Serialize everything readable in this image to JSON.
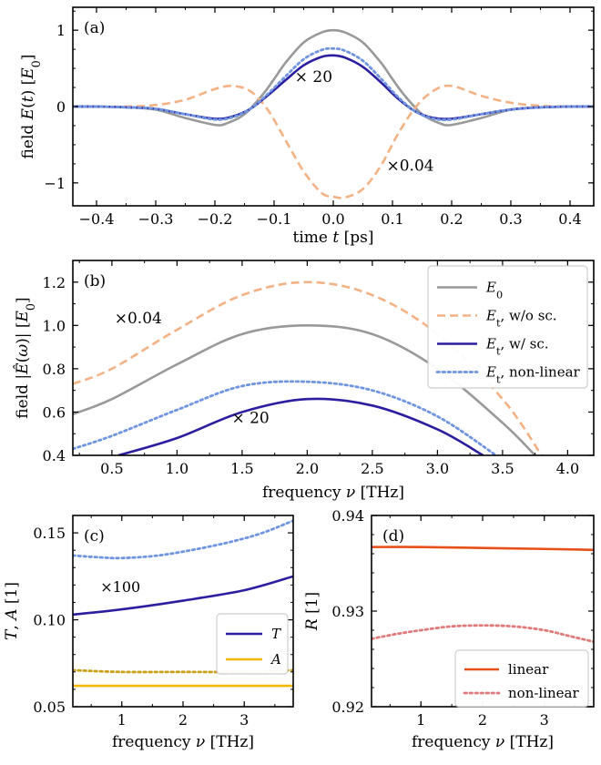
{
  "colors": {
    "E0": "#999999",
    "wo_sc": "#f4b183",
    "w_sc": "#2b1fa0",
    "nonlinear": "#6f95e0",
    "A": "#f5b800",
    "A_dotted": "#c9a01a",
    "R_linear": "#e8501a",
    "R_nonlinear": "#e07a7a",
    "annot_orange": "#f4b183",
    "annot_blue": "#3340b0"
  },
  "chart_data": [
    {
      "panel": "(a)",
      "type": "line",
      "xlabel": "time t [ps]",
      "ylabel": "field E(t) [E0]",
      "xlim": [
        -0.44,
        0.44
      ],
      "ylim": [
        -1.3,
        1.3
      ],
      "xticks": [
        "−0.4",
        "−0.3",
        "−0.2",
        "−0.1",
        "0.0",
        "0.1",
        "0.2",
        "0.3",
        "0.4"
      ],
      "yticks": [
        "−1",
        "0",
        "1"
      ],
      "annotations": [
        "× 20",
        "×0.04"
      ],
      "series": [
        {
          "key": "E0",
          "style": "solid",
          "x": [
            -0.44,
            -0.4,
            -0.35,
            -0.3,
            -0.25,
            -0.2,
            -0.18,
            -0.15,
            -0.12,
            -0.1,
            -0.08,
            -0.05,
            -0.02,
            0,
            0.02,
            0.05,
            0.08,
            0.1,
            0.12,
            0.15,
            0.18,
            0.2,
            0.25,
            0.3,
            0.35,
            0.4,
            0.44
          ],
          "y": [
            0,
            0,
            -0.01,
            -0.04,
            -0.15,
            -0.24,
            -0.22,
            -0.1,
            0.15,
            0.36,
            0.58,
            0.84,
            0.97,
            1.0,
            0.97,
            0.84,
            0.58,
            0.36,
            0.15,
            -0.1,
            -0.22,
            -0.24,
            -0.15,
            -0.04,
            -0.01,
            0,
            0
          ]
        },
        {
          "key": "wo_sc",
          "style": "dashed",
          "x": [
            -0.44,
            -0.4,
            -0.35,
            -0.3,
            -0.25,
            -0.2,
            -0.17,
            -0.14,
            -0.11,
            -0.08,
            -0.05,
            -0.02,
            0.0,
            0.02,
            0.05,
            0.08,
            0.11,
            0.14,
            0.17,
            0.2,
            0.25,
            0.3,
            0.35,
            0.4,
            0.44
          ],
          "y": [
            0,
            0,
            0,
            0.02,
            0.09,
            0.23,
            0.27,
            0.2,
            -0.05,
            -0.45,
            -0.85,
            -1.13,
            -1.18,
            -1.19,
            -1.08,
            -0.78,
            -0.35,
            0.0,
            0.21,
            0.27,
            0.14,
            0.05,
            0.01,
            0,
            0
          ]
        },
        {
          "key": "w_sc",
          "style": "solid",
          "x": [
            -0.44,
            -0.4,
            -0.35,
            -0.3,
            -0.25,
            -0.2,
            -0.17,
            -0.14,
            -0.11,
            -0.08,
            -0.05,
            -0.02,
            0,
            0.02,
            0.05,
            0.08,
            0.11,
            0.14,
            0.17,
            0.2,
            0.25,
            0.3,
            0.35,
            0.4,
            0.44
          ],
          "y": [
            0,
            0,
            -0.01,
            -0.03,
            -0.1,
            -0.16,
            -0.13,
            -0.03,
            0.15,
            0.35,
            0.54,
            0.65,
            0.67,
            0.64,
            0.52,
            0.32,
            0.1,
            -0.07,
            -0.15,
            -0.16,
            -0.1,
            -0.04,
            -0.01,
            0,
            0
          ]
        },
        {
          "key": "nonlinear",
          "style": "dotted",
          "x": [
            -0.44,
            -0.4,
            -0.35,
            -0.3,
            -0.25,
            -0.2,
            -0.17,
            -0.14,
            -0.11,
            -0.08,
            -0.05,
            -0.02,
            0,
            0.02,
            0.05,
            0.08,
            0.11,
            0.14,
            0.17,
            0.2,
            0.25,
            0.3,
            0.35,
            0.4,
            0.44
          ],
          "y": [
            0,
            0,
            -0.01,
            -0.03,
            -0.1,
            -0.17,
            -0.14,
            -0.03,
            0.17,
            0.4,
            0.62,
            0.74,
            0.76,
            0.73,
            0.6,
            0.37,
            0.12,
            -0.07,
            -0.16,
            -0.17,
            -0.1,
            -0.04,
            -0.01,
            0,
            0
          ]
        }
      ]
    },
    {
      "panel": "(b)",
      "type": "line",
      "xlabel": "frequency ν [THz]",
      "ylabel": "field |Ê(ω)| [E0]",
      "xlim": [
        0.2,
        4.2
      ],
      "ylim": [
        0.4,
        1.3
      ],
      "xticks": [
        "0.5",
        "1.0",
        "1.5",
        "2.0",
        "2.5",
        "3.0",
        "3.5",
        "4.0"
      ],
      "yticks": [
        "0.4",
        "0.6",
        "0.8",
        "1.0",
        "1.2"
      ],
      "annotations": [
        "×0.04",
        "× 20"
      ],
      "legend": {
        "position": "top-right",
        "entries": [
          {
            "key": "E0",
            "label": "E0"
          },
          {
            "key": "wo_sc",
            "label": "Et, w/o sc."
          },
          {
            "key": "w_sc",
            "label": "Et, w/ sc."
          },
          {
            "key": "nonlinear",
            "label": "Et, non-linear"
          }
        ]
      },
      "series": [
        {
          "key": "E0",
          "style": "solid",
          "x": [
            0.2,
            0.5,
            1.0,
            1.5,
            2.0,
            2.5,
            3.0,
            3.5,
            3.75
          ],
          "y": [
            0.59,
            0.66,
            0.82,
            0.96,
            1.0,
            0.96,
            0.8,
            0.55,
            0.4
          ]
        },
        {
          "key": "wo_sc",
          "style": "dashed",
          "x": [
            0.2,
            0.5,
            1.0,
            1.5,
            2.0,
            2.5,
            3.0,
            3.5,
            3.8
          ],
          "y": [
            0.73,
            0.8,
            0.98,
            1.14,
            1.2,
            1.14,
            0.96,
            0.66,
            0.4
          ]
        },
        {
          "key": "w_sc",
          "style": "solid",
          "x": [
            0.55,
            1.0,
            1.5,
            2.0,
            2.5,
            3.0,
            3.35
          ],
          "y": [
            0.4,
            0.48,
            0.6,
            0.66,
            0.63,
            0.52,
            0.4
          ]
        },
        {
          "key": "nonlinear",
          "style": "dotted",
          "x": [
            0.2,
            0.5,
            1.0,
            1.5,
            2.0,
            2.5,
            3.0,
            3.45
          ],
          "y": [
            0.43,
            0.49,
            0.61,
            0.72,
            0.74,
            0.7,
            0.58,
            0.4
          ]
        }
      ]
    },
    {
      "panel": "(c)",
      "type": "line",
      "xlabel": "frequency ν [THz]",
      "ylabel": "T, A [1]",
      "xlim": [
        0.2,
        3.8
      ],
      "ylim": [
        0.05,
        0.16
      ],
      "xticks": [
        "1",
        "2",
        "3"
      ],
      "yticks": [
        "0.05",
        "0.10",
        "0.15"
      ],
      "annotations": [
        "×100"
      ],
      "legend": {
        "position": "lower-right",
        "entries": [
          {
            "key": "T",
            "label": "T"
          },
          {
            "key": "A",
            "label": "A"
          }
        ]
      },
      "series": [
        {
          "key": "T",
          "style": "solid",
          "x": [
            0.2,
            1.0,
            2.0,
            3.0,
            3.8
          ],
          "y": [
            0.103,
            0.106,
            0.111,
            0.117,
            0.125
          ]
        },
        {
          "key": "T_nonlinear",
          "style": "dotted",
          "x": [
            0.2,
            0.6,
            1.0,
            1.6,
            2.2,
            2.8,
            3.3,
            3.8
          ],
          "y": [
            0.137,
            0.136,
            0.1355,
            0.137,
            0.1405,
            0.145,
            0.15,
            0.157
          ]
        },
        {
          "key": "A",
          "style": "solid",
          "x": [
            0.2,
            3.8
          ],
          "y": [
            0.062,
            0.062
          ]
        },
        {
          "key": "A_nonlinear",
          "style": "dotted",
          "x": [
            0.2,
            1.0,
            2.0,
            3.0,
            3.8
          ],
          "y": [
            0.071,
            0.07,
            0.07,
            0.07,
            0.071
          ]
        }
      ]
    },
    {
      "panel": "(d)",
      "type": "line",
      "xlabel": "frequency ν [THz]",
      "ylabel": "R [1]",
      "xlim": [
        0.2,
        3.8
      ],
      "ylim": [
        0.92,
        0.94
      ],
      "xticks": [
        "1",
        "2",
        "3"
      ],
      "yticks": [
        "0.92",
        "0.93",
        "0.94"
      ],
      "legend": {
        "position": "lower-right",
        "entries": [
          {
            "key": "R_linear",
            "label": "linear"
          },
          {
            "key": "R_nonlinear",
            "label": "non-linear"
          }
        ]
      },
      "series": [
        {
          "key": "R_linear",
          "style": "solid",
          "x": [
            0.2,
            1.0,
            2.0,
            3.0,
            3.8
          ],
          "y": [
            0.9367,
            0.9367,
            0.9366,
            0.9365,
            0.9364
          ]
        },
        {
          "key": "R_nonlinear",
          "style": "dotted",
          "x": [
            0.2,
            0.6,
            1.0,
            1.5,
            2.0,
            2.5,
            3.0,
            3.4,
            3.8
          ],
          "y": [
            0.9271,
            0.9276,
            0.928,
            0.9284,
            0.9285,
            0.9284,
            0.928,
            0.9274,
            0.9268
          ]
        }
      ]
    }
  ]
}
